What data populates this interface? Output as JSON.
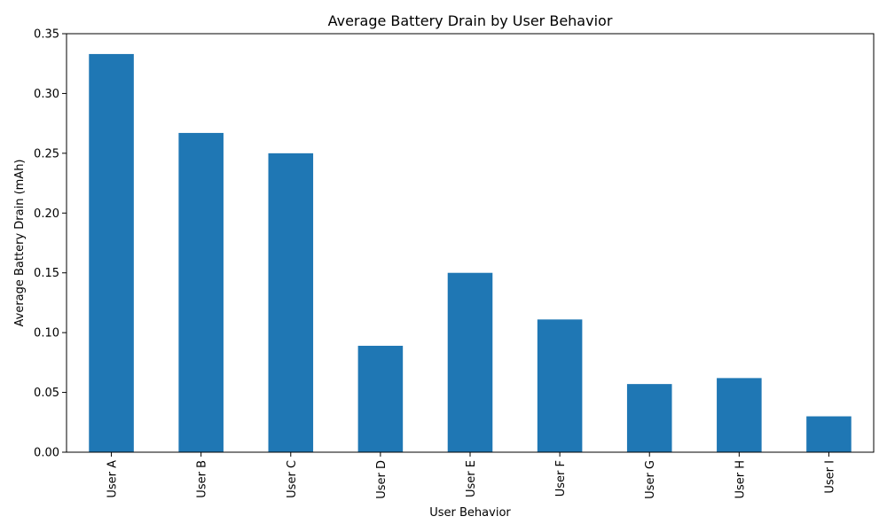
{
  "chart_data": {
    "type": "bar",
    "title": "Average Battery Drain by User Behavior",
    "xlabel": "User Behavior",
    "ylabel": "Average Battery Drain (mAh)",
    "categories": [
      "User A",
      "User B",
      "User C",
      "User D",
      "User E",
      "User F",
      "User G",
      "User H",
      "User I"
    ],
    "values": [
      0.333,
      0.267,
      0.25,
      0.089,
      0.15,
      0.111,
      0.057,
      0.062,
      0.03
    ],
    "ylim": [
      0,
      0.35
    ],
    "yticks": [
      "0.00",
      "0.05",
      "0.10",
      "0.15",
      "0.20",
      "0.25",
      "0.30",
      "0.35"
    ],
    "bar_color": "#1f77b4",
    "grid": false,
    "legend": "none"
  }
}
